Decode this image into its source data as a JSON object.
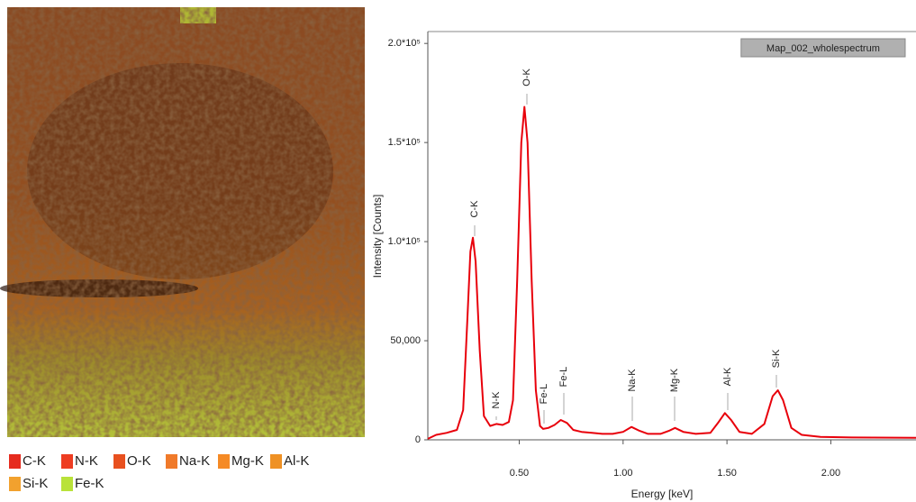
{
  "map": {
    "legend": [
      {
        "label": "C-K",
        "color": "#e62b1e"
      },
      {
        "label": "N-K",
        "color": "#ee3d22"
      },
      {
        "label": "O-K",
        "color": "#e8501f"
      },
      {
        "label": "Na-K",
        "color": "#f07a2a"
      },
      {
        "label": "Mg-K",
        "color": "#f58a25"
      },
      {
        "label": "Al-K",
        "color": "#ef9124"
      },
      {
        "label": "Si-K",
        "color": "#f2a12e"
      },
      {
        "label": "Fe-K",
        "color": "#b9e23a"
      }
    ]
  },
  "chart_data": {
    "type": "line",
    "x_label": "Energy [keV]",
    "y_label": "Intensity [Counts]",
    "xlim": [
      0.06,
      2.41
    ],
    "ylim": [
      0,
      206000
    ],
    "xticks": [
      {
        "value": 0.5,
        "label": "0.50"
      },
      {
        "value": 1.0,
        "label": "1.00"
      },
      {
        "value": 1.5,
        "label": "1.50"
      },
      {
        "value": 2.0,
        "label": "2.00"
      }
    ],
    "yticks": [
      0,
      {
        "value": 50000,
        "label": "50,000"
      },
      {
        "value": 100000,
        "label": "1.0*10⁵"
      },
      {
        "value": 150000,
        "label": "1.5*10⁵"
      },
      {
        "value": 200000,
        "label": "2.0*10⁵"
      }
    ],
    "grid": false,
    "series": [
      {
        "name": "Map_002_wholespectrum",
        "color": "#e8000b",
        "x": [
          0.06,
          0.1,
          0.15,
          0.2,
          0.23,
          0.25,
          0.265,
          0.277,
          0.29,
          0.31,
          0.33,
          0.36,
          0.39,
          0.42,
          0.45,
          0.47,
          0.49,
          0.51,
          0.525,
          0.54,
          0.56,
          0.58,
          0.6,
          0.615,
          0.64,
          0.67,
          0.7,
          0.73,
          0.76,
          0.8,
          0.85,
          0.9,
          0.95,
          1.0,
          1.04,
          1.08,
          1.12,
          1.18,
          1.22,
          1.25,
          1.29,
          1.35,
          1.42,
          1.46,
          1.49,
          1.52,
          1.56,
          1.62,
          1.68,
          1.72,
          1.745,
          1.77,
          1.81,
          1.86,
          1.95,
          2.1,
          2.41
        ],
        "values": [
          500,
          2500,
          3500,
          5000,
          15000,
          60000,
          95000,
          102000,
          90000,
          45000,
          12000,
          7000,
          8000,
          7500,
          9000,
          20000,
          80000,
          150000,
          168000,
          150000,
          80000,
          25000,
          7000,
          5500,
          6000,
          7500,
          10000,
          8500,
          5000,
          4000,
          3500,
          3000,
          3000,
          4000,
          6500,
          4500,
          3000,
          3000,
          4500,
          6000,
          4000,
          3000,
          3500,
          9000,
          13500,
          10000,
          4000,
          3000,
          8000,
          22000,
          25000,
          20000,
          6000,
          2500,
          1500,
          1200,
          1000
        ]
      }
    ],
    "annotations": [
      "C-K",
      "N-K",
      "O-K",
      "Fe-L",
      "Fe-L",
      "Na-K",
      "Mg-K",
      "Al-K",
      "Si-K"
    ]
  }
}
